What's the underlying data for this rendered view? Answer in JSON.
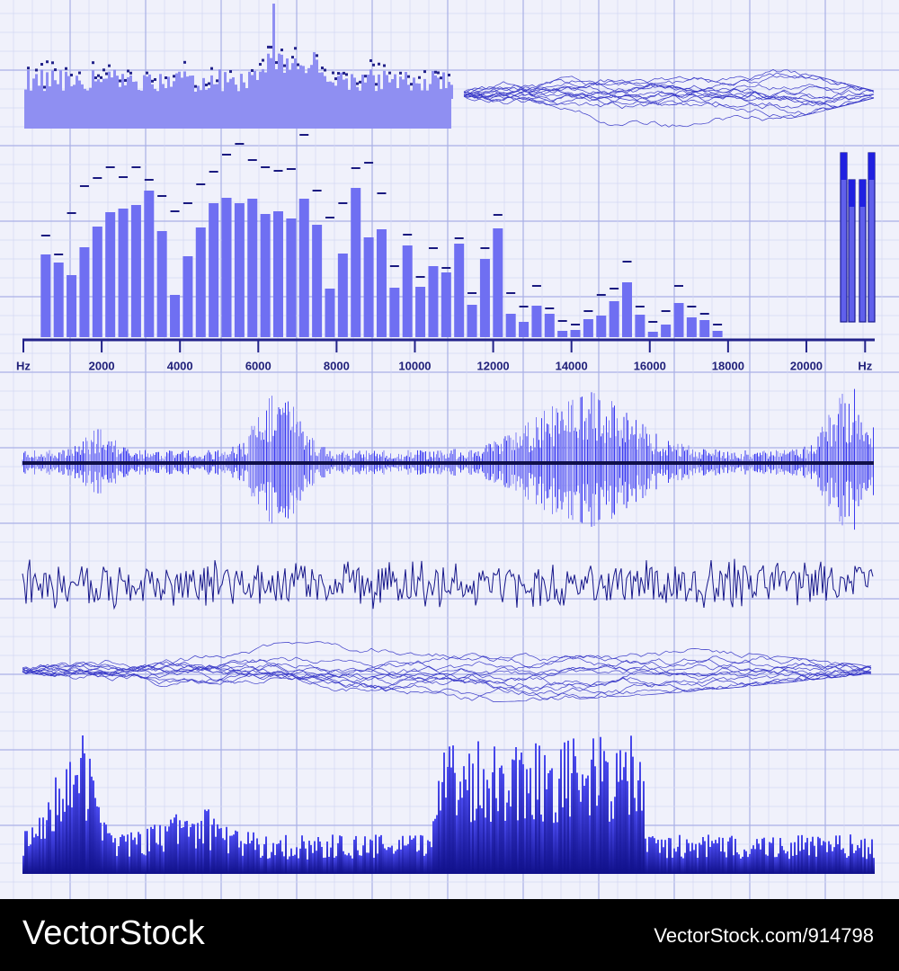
{
  "chart_data": {
    "type": "bar",
    "x": [
      570,
      900,
      1230,
      1560,
      1890,
      2220,
      2550,
      2880,
      3210,
      3540,
      3870,
      4200,
      4530,
      4860,
      5190,
      5520,
      5850,
      6180,
      6510,
      6840,
      7170,
      7500,
      7830,
      8160,
      8490,
      8820,
      9150,
      9480,
      9810,
      10140,
      10470,
      10800,
      11130,
      11460,
      11790,
      12120,
      12450,
      12780,
      13110,
      13440,
      13770,
      14100,
      14430,
      14760,
      15090,
      15420,
      15750,
      16080,
      16410,
      16740,
      17070,
      17400,
      17730
    ],
    "values": [
      92,
      83,
      69,
      100,
      123,
      139,
      143,
      147,
      163,
      118,
      47,
      90,
      122,
      149,
      155,
      149,
      154,
      137,
      140,
      132,
      154,
      125,
      54,
      93,
      166,
      111,
      120,
      55,
      102,
      56,
      79,
      72,
      104,
      36,
      87,
      121,
      26,
      17,
      35,
      26,
      7,
      8,
      20,
      24,
      40,
      61,
      25,
      6,
      14,
      38,
      22,
      19,
      7
    ],
    "peaks": [
      113,
      92,
      138,
      168,
      177,
      189,
      178,
      189,
      175,
      157,
      140,
      149,
      170,
      184,
      203,
      215,
      197,
      189,
      185,
      187,
      225,
      163,
      133,
      149,
      188,
      194,
      160,
      79,
      114,
      67,
      99,
      77,
      110,
      49,
      99,
      136,
      49,
      34,
      57,
      32,
      18,
      14,
      29,
      47,
      54,
      84,
      34,
      17,
      29,
      57,
      34,
      26,
      14
    ],
    "color": "#6f6ff2",
    "peak_color": "#1a1a80",
    "xlim": [
      0,
      21700
    ],
    "ylim": [
      0,
      240
    ],
    "xticks": [
      {
        "value": 0,
        "label": "Hz"
      },
      2000,
      4000,
      6000,
      8000,
      10000,
      12000,
      14000,
      16000,
      18000,
      20000,
      {
        "value": 21500,
        "label": "Hz"
      }
    ]
  },
  "footer": {
    "brand": "VectorStock",
    "credit": "VectorStock.com/914798"
  }
}
